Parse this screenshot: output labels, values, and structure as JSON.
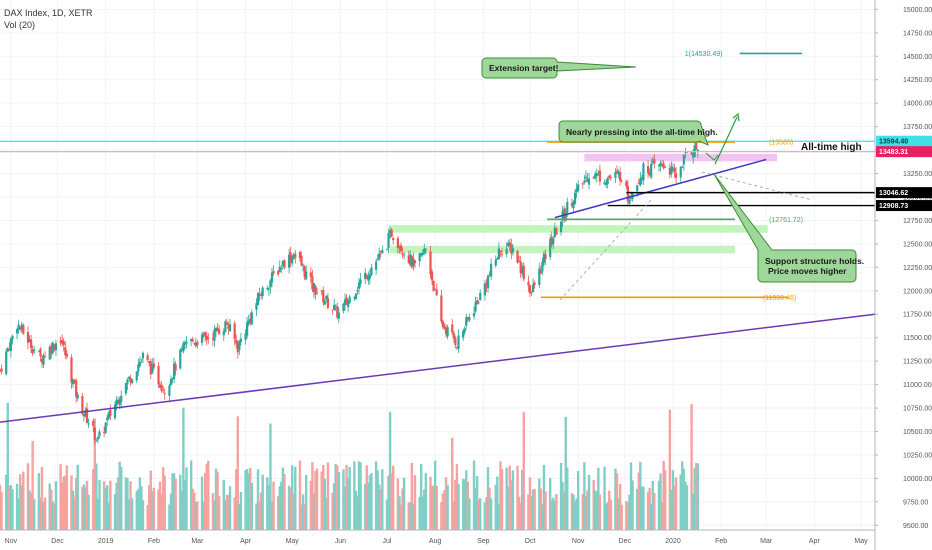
{
  "header": {
    "symbol_line": "DAX Index, 1D, XETR",
    "volume_line": "Vol (20)"
  },
  "colors": {
    "up": "#26a69a",
    "down": "#ef5350",
    "vol_up": "#7fcfc6",
    "vol_down": "#f4a3a1",
    "trend": "#6a3ab5",
    "trend_upper": "#3d38c7",
    "ath_line": "#3fe0e6",
    "level_pink": "#f5a6c4",
    "orange": "#ff9800",
    "green_line": "#4caf50",
    "green_zone": "#b8f2b0",
    "pink_zone": "#f2b8f0",
    "callout_fill": "#9fd69a",
    "callout_stroke": "#3e8c38",
    "ext_line": "#2aa198"
  },
  "chart_data": {
    "type": "candlestick",
    "title": "DAX Index, 1D, XETR",
    "x_range": [
      "2018-10-25",
      "2020-05-10"
    ],
    "y_range": [
      9450,
      15100
    ],
    "volume_indicator": "Vol (20)",
    "x_tick_labels": [
      {
        "label": "Nov",
        "date": "2018-11-01"
      },
      {
        "label": "Dec",
        "date": "2018-12-01"
      },
      {
        "label": "2019",
        "date": "2019-01-01"
      },
      {
        "label": "Feb",
        "date": "2019-02-01"
      },
      {
        "label": "Mar",
        "date": "2019-03-01"
      },
      {
        "label": "Apr",
        "date": "2019-04-01"
      },
      {
        "label": "May",
        "date": "2019-05-01"
      },
      {
        "label": "Jun",
        "date": "2019-06-01"
      },
      {
        "label": "Jul",
        "date": "2019-07-01"
      },
      {
        "label": "Aug",
        "date": "2019-08-01"
      },
      {
        "label": "Sep",
        "date": "2019-09-01"
      },
      {
        "label": "Oct",
        "date": "2019-10-01"
      },
      {
        "label": "Nov",
        "date": "2019-11-01"
      },
      {
        "label": "Dec",
        "date": "2019-12-01"
      },
      {
        "label": "2020",
        "date": "2020-01-01"
      },
      {
        "label": "Feb",
        "date": "2020-02-01"
      },
      {
        "label": "Mar",
        "date": "2020-03-01"
      },
      {
        "label": "Apr",
        "date": "2020-04-01"
      },
      {
        "label": "May",
        "date": "2020-05-01"
      }
    ],
    "y_tick_labels": [
      "15000.00",
      "14750.00",
      "14500.00",
      "14250.00",
      "14000.00",
      "13750.00",
      "13500.00",
      "13250.00",
      "13000.00",
      "12750.00",
      "12500.00",
      "12250.00",
      "12000.00",
      "11750.00",
      "11500.00",
      "11250.00",
      "11000.00",
      "10750.00",
      "10500.00",
      "10250.00",
      "10000.00",
      "9750.00",
      "9500.00"
    ],
    "y_tick_values": [
      15000,
      14750,
      14500,
      14250,
      14000,
      13750,
      13500,
      13250,
      13000,
      12750,
      12500,
      12250,
      12000,
      11750,
      11500,
      11250,
      11000,
      10750,
      10500,
      10250,
      10000,
      9750,
      9500
    ],
    "close_path": [
      {
        "date": "2018-10-25",
        "close": 11150
      },
      {
        "date": "2018-11-05",
        "close": 11650
      },
      {
        "date": "2018-11-20",
        "close": 11280
      },
      {
        "date": "2018-12-03",
        "close": 11500
      },
      {
        "date": "2018-12-14",
        "close": 10850
      },
      {
        "date": "2018-12-27",
        "close": 10400
      },
      {
        "date": "2019-01-10",
        "close": 10900
      },
      {
        "date": "2019-01-25",
        "close": 11300
      },
      {
        "date": "2019-02-08",
        "close": 10950
      },
      {
        "date": "2019-02-22",
        "close": 11450
      },
      {
        "date": "2019-03-08",
        "close": 11500
      },
      {
        "date": "2019-03-20",
        "close": 11650
      },
      {
        "date": "2019-03-27",
        "close": 11400
      },
      {
        "date": "2019-04-10",
        "close": 11950
      },
      {
        "date": "2019-04-25",
        "close": 12300
      },
      {
        "date": "2019-05-03",
        "close": 12400
      },
      {
        "date": "2019-05-14",
        "close": 12050
      },
      {
        "date": "2019-05-31",
        "close": 11750
      },
      {
        "date": "2019-06-14",
        "close": 12100
      },
      {
        "date": "2019-06-28",
        "close": 12400
      },
      {
        "date": "2019-07-04",
        "close": 12620
      },
      {
        "date": "2019-07-19",
        "close": 12250
      },
      {
        "date": "2019-07-26",
        "close": 12450
      },
      {
        "date": "2019-08-05",
        "close": 11650
      },
      {
        "date": "2019-08-15",
        "close": 11450
      },
      {
        "date": "2019-08-30",
        "close": 11950
      },
      {
        "date": "2019-09-12",
        "close": 12450
      },
      {
        "date": "2019-09-20",
        "close": 12450
      },
      {
        "date": "2019-10-02",
        "close": 11980
      },
      {
        "date": "2019-10-14",
        "close": 12500
      },
      {
        "date": "2019-10-25",
        "close": 12900
      },
      {
        "date": "2019-11-08",
        "close": 13250
      },
      {
        "date": "2019-11-20",
        "close": 13200
      },
      {
        "date": "2019-11-29",
        "close": 13240
      },
      {
        "date": "2019-12-03",
        "close": 12990
      },
      {
        "date": "2019-12-13",
        "close": 13290
      },
      {
        "date": "2019-12-27",
        "close": 13340
      },
      {
        "date": "2020-01-03",
        "close": 13220
      },
      {
        "date": "2020-01-10",
        "close": 13480
      },
      {
        "date": "2020-01-17",
        "close": 13520
      }
    ],
    "levels": [
      {
        "name": "all-time-high",
        "value": 13594.4,
        "label": "13594.40",
        "color_key": "ath_line",
        "full_width": true
      },
      {
        "name": "last-price",
        "value": 13483.31,
        "label": "13483.31",
        "color_key": "level_pink",
        "full_width": true
      },
      {
        "name": "support-upper",
        "value": 13046.62,
        "label": "13046.62",
        "color_key": "black",
        "from": "2019-12-02"
      },
      {
        "name": "support-lower",
        "value": 12908.73,
        "label": "12908.73",
        "color_key": "black",
        "from": "2019-11-20"
      }
    ],
    "fib_levels": [
      {
        "value": 13585,
        "label": "(13585)",
        "color_key": "orange",
        "from": "2019-10-12",
        "to": "2020-02-10"
      },
      {
        "value": 12761.72,
        "label": "(12761.72)",
        "color_key": "green_line",
        "from": "2019-10-12",
        "to": "2020-02-10"
      },
      {
        "value": 11930.46,
        "label": "(11930.46)",
        "color_key": "orange",
        "from": "2019-10-08",
        "to": "2020-03-15"
      },
      {
        "value": 14530.49,
        "label": "1(14530.49)",
        "color_key": "ext_line",
        "from": "2020-02-13",
        "to": "2020-03-24"
      }
    ],
    "zones": [
      {
        "from": "2019-11-05",
        "to": "2020-03-08",
        "y1": 13380,
        "y2": 13460,
        "color_key": "pink_zone"
      },
      {
        "from": "2019-07-02",
        "to": "2020-03-02",
        "y1": 12620,
        "y2": 12700,
        "color_key": "green_zone"
      },
      {
        "from": "2019-07-03",
        "to": "2020-02-10",
        "y1": 12400,
        "y2": 12480,
        "color_key": "green_zone"
      }
    ],
    "trendlines": [
      {
        "from": [
          "2018-10-25",
          10600
        ],
        "to": [
          "2020-05-10",
          11750
        ],
        "color_key": "trend"
      },
      {
        "from": [
          "2019-10-17",
          12780
        ],
        "to": [
          "2020-03-01",
          13400
        ],
        "color_key": "trend_upper"
      }
    ],
    "annotations": [
      {
        "text": "Extension target!",
        "kind": "callout"
      },
      {
        "text": "Nearly pressing into the all-time high.",
        "kind": "callout"
      },
      {
        "text": "Support structure holds.",
        "kind": "callout"
      },
      {
        "text": "Price moves higher",
        "kind": "callout"
      },
      {
        "text": "All-time high",
        "kind": "label"
      }
    ]
  }
}
